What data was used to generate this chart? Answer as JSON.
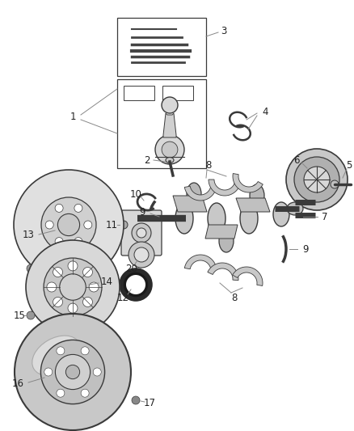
{
  "background_color": "#ffffff",
  "line_color": "#3a3a3a",
  "label_color": "#222222",
  "label_fontsize": 8.5,
  "fig_width": 4.38,
  "fig_height": 5.33,
  "dpi": 100
}
